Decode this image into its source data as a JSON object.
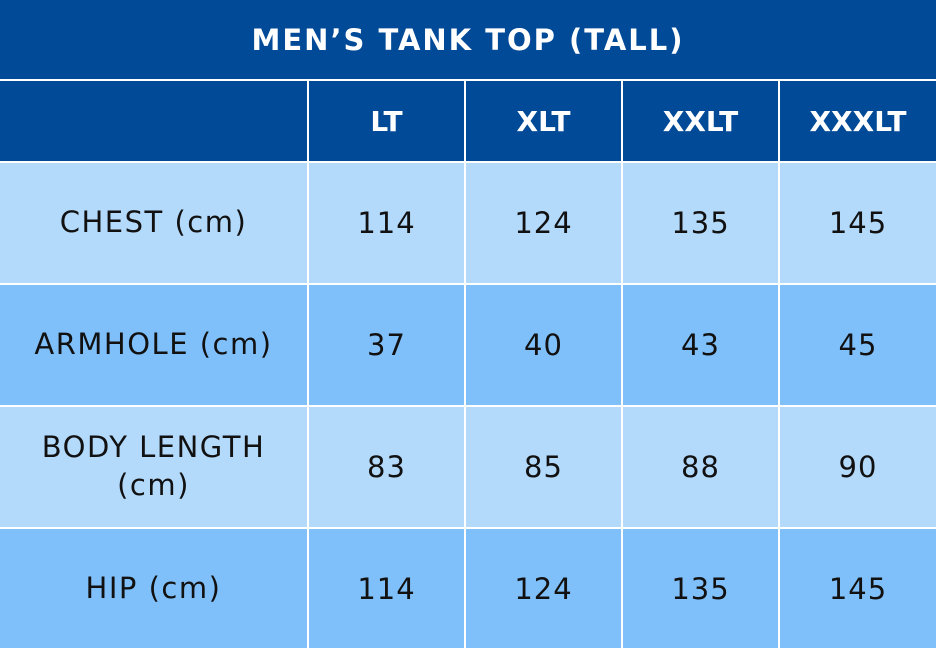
{
  "table": {
    "title": "MEN’S TANK TOP (TALL)",
    "columns": [
      "LT",
      "XLT",
      "XXLT",
      "XXXLT"
    ],
    "rows": [
      {
        "label": "CHEST (cm)",
        "values": [
          114,
          124,
          135,
          145
        ]
      },
      {
        "label": "ARMHOLE (cm)",
        "values": [
          37,
          40,
          43,
          45
        ]
      },
      {
        "label": "BODY LENGTH (cm)",
        "values": [
          83,
          85,
          88,
          90
        ]
      },
      {
        "label": "HIP (cm)",
        "values": [
          114,
          124,
          135,
          145
        ]
      }
    ]
  }
}
